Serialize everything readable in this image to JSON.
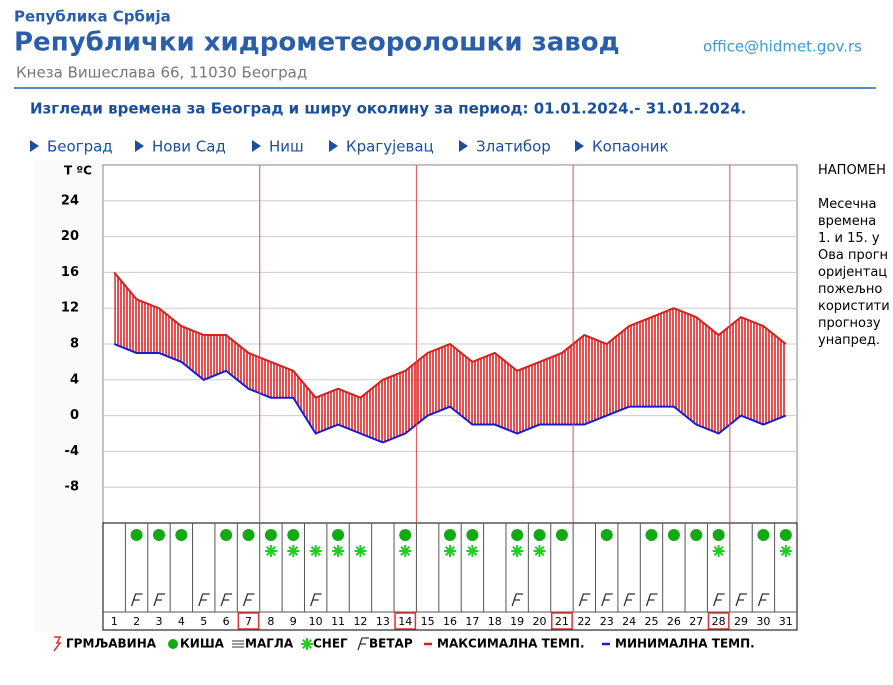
{
  "header": {
    "country": "Република Србија",
    "title": "Републички хидрометеоролошки завод",
    "address": "Кнеза Вишеслава 66, 11030 Београд",
    "email": "office@hidmet.gov.rs"
  },
  "heading": "Изгледи времена за Београд и ширу околину за период: 01.01.2024.- 31.01.2024.",
  "nav": [
    "Београд",
    "Нови Сад",
    "Ниш",
    "Крагујевац",
    "Златибор",
    "Копаоник"
  ],
  "note": [
    "НАПОМЕН",
    "",
    "Месечна",
    "времена",
    "1. и 15. у",
    "Ова прогн",
    "оријентац",
    "пожељно",
    "користити",
    "прогнозу",
    "унапред."
  ],
  "chart_data": {
    "type": "line",
    "y_label": "Т ºС",
    "categories": [
      "1",
      "2",
      "3",
      "4",
      "5",
      "6",
      "7",
      "8",
      "9",
      "10",
      "11",
      "12",
      "13",
      "14",
      "15",
      "16",
      "17",
      "18",
      "19",
      "20",
      "21",
      "22",
      "23",
      "24",
      "25",
      "26",
      "27",
      "28",
      "29",
      "30",
      "31"
    ],
    "series": [
      {
        "name": "МАКСИМАЛНА ТЕМП.",
        "color": "#d42020",
        "values": [
          16,
          13,
          12,
          10,
          9,
          9,
          7,
          6,
          5,
          2,
          3,
          2,
          4,
          5,
          7,
          8,
          6,
          7,
          5,
          6,
          7,
          9,
          8,
          10,
          11,
          12,
          11,
          9,
          11,
          10,
          8
        ]
      },
      {
        "name": "МИНИМАЛНА ТЕМП.",
        "color": "#1a1ad0",
        "values": [
          8,
          7,
          7,
          6,
          4,
          5,
          3,
          2,
          2,
          -2,
          -1,
          -2,
          -3,
          -2,
          0,
          1,
          -1,
          -1,
          -2,
          -1,
          -1,
          -1,
          0,
          1,
          1,
          1,
          -1,
          -2,
          0,
          -1,
          0
        ]
      }
    ],
    "ylim": [
      -12,
      28
    ],
    "yticks": [
      24,
      20,
      16,
      12,
      8,
      4,
      0,
      -4,
      -8
    ],
    "grid": true,
    "highlight_days": [
      7,
      14,
      21,
      28
    ],
    "symbols": {
      "thunder": "ГРМЉАВИНА",
      "rain": "КИША",
      "fog": "МАГЛА",
      "snow": "СНЕГ",
      "wind": "ВЕТАР"
    },
    "rain_days": [
      2,
      3,
      4,
      6,
      7,
      8,
      9,
      11,
      14,
      16,
      17,
      19,
      20,
      21,
      23,
      25,
      26,
      27,
      28,
      30,
      31
    ],
    "snow_days": [
      8,
      9,
      10,
      11,
      12,
      14,
      16,
      17,
      19,
      20,
      28,
      31
    ],
    "wind_days": [
      2,
      3,
      5,
      6,
      7,
      10,
      19,
      22,
      23,
      24,
      25,
      28,
      29,
      30
    ]
  }
}
